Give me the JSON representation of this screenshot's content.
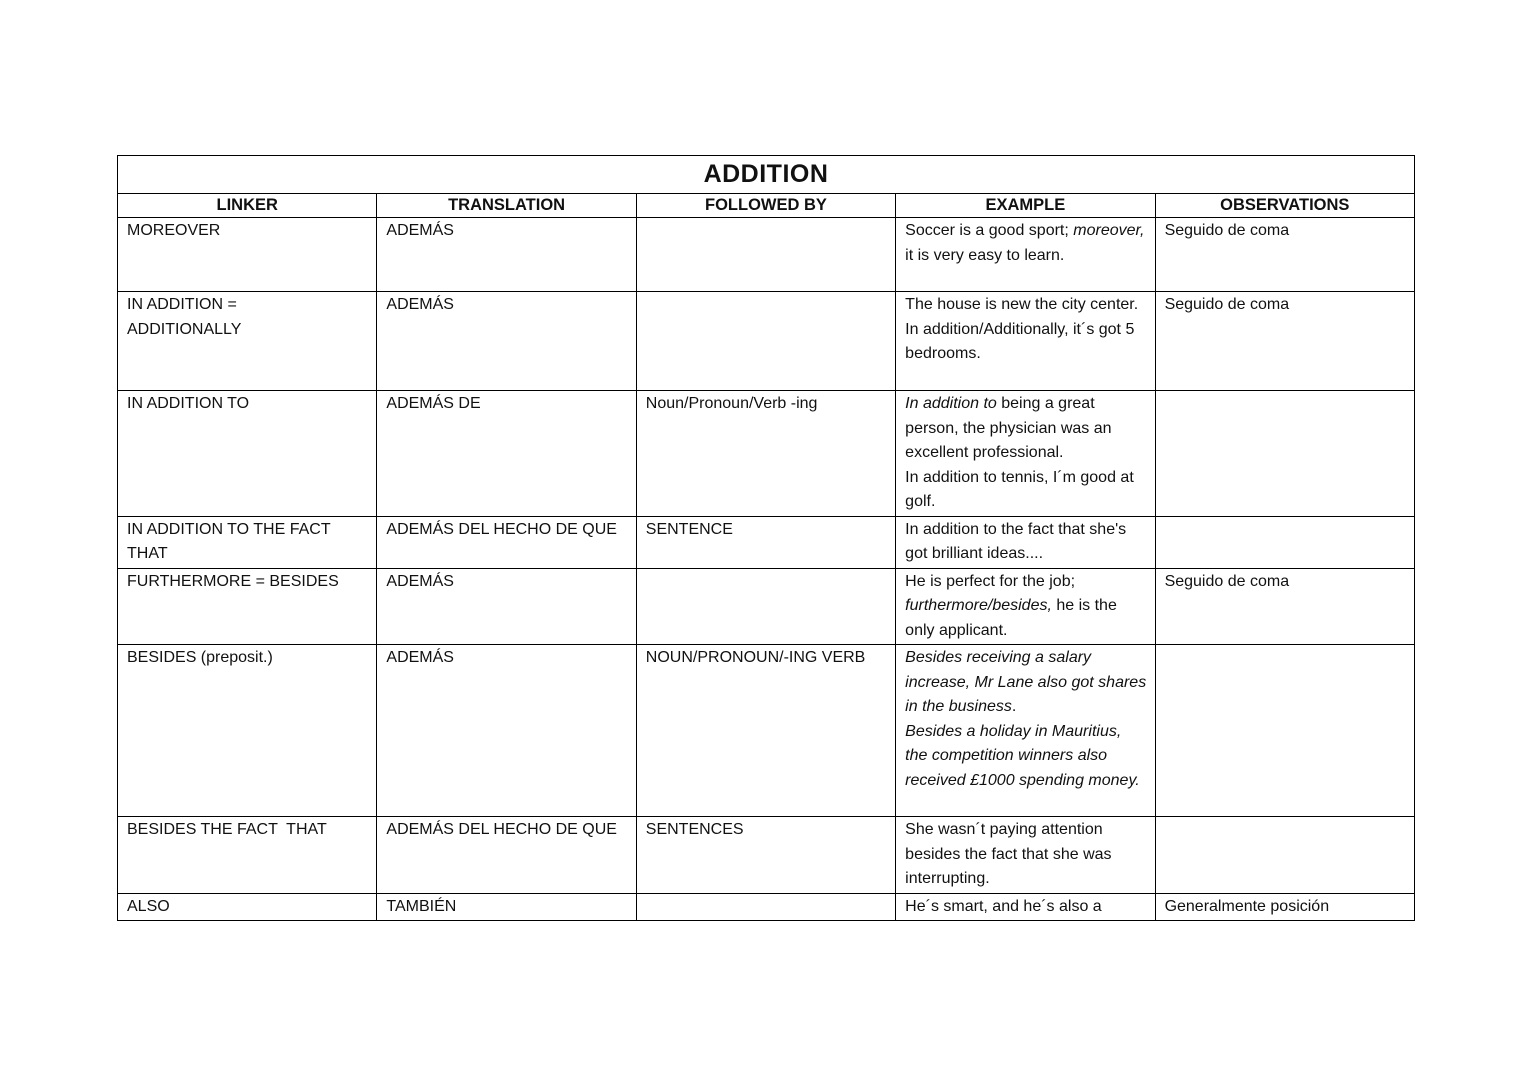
{
  "table": {
    "title": "ADDITION",
    "columns": [
      "LINKER",
      "TRANSLATION",
      "FOLLOWED BY",
      "EXAMPLE",
      "OBSERVATIONS"
    ],
    "rows": [
      {
        "linker": "MOREOVER",
        "translation": "ADEMÁS",
        "followed_by": "",
        "example": [
          {
            "t": "Soccer is a good sport; ",
            "i": false
          },
          {
            "t": "moreover,",
            "i": true
          },
          {
            "t": " it is very easy to learn.",
            "i": false
          }
        ],
        "observations": "Seguido de coma"
      },
      {
        "linker": "IN ADDITION =\nADDITIONALLY",
        "translation": "ADEMÁS",
        "followed_by": "",
        "example": [
          {
            "t": "The house is new the city center. In addition/Additionally, it´s got 5 bedrooms.",
            "i": false
          }
        ],
        "observations": "Seguido de coma"
      },
      {
        "linker": "IN ADDITION TO",
        "translation": "ADEMÁS DE",
        "followed_by": "Noun/Pronoun/Verb -ing",
        "example": [
          {
            "t": "In addition to",
            "i": true
          },
          {
            "t": " being a great person, the physician was an excellent professional.\nIn addition to tennis, I´m good at golf.",
            "i": false
          }
        ],
        "observations": ""
      },
      {
        "linker": "IN ADDITION TO THE FACT\nTHAT",
        "translation": "ADEMÁS DEL HECHO DE QUE",
        "followed_by": "SENTENCE",
        "example": [
          {
            "t": "In addition to the fact that she's  got brilliant ideas....",
            "i": false
          }
        ],
        "observations": ""
      },
      {
        "linker": "FURTHERMORE = BESIDES",
        "translation": "ADEMÁS",
        "followed_by": "",
        "example": [
          {
            "t": "He is perfect for the job; ",
            "i": false
          },
          {
            "t": "furthermore/besides,",
            "i": true
          },
          {
            "t": " he is the only applicant.",
            "i": false
          }
        ],
        "observations": "Seguido de coma"
      },
      {
        "linker": "BESIDES (preposit.)",
        "translation": "ADEMÁS",
        "followed_by": "NOUN/PRONOUN/-ING VERB",
        "example": [
          {
            "t": "Besides receiving a salary increase, Mr Lane also got shares in the business",
            "i": true
          },
          {
            "t": ".\n",
            "i": false
          },
          {
            "t": "Besides a holiday in Mauritius, the competition winners also received £1000 spending money.",
            "i": true
          }
        ],
        "observations": ""
      },
      {
        "linker": "BESIDES THE FACT  THAT",
        "translation": "ADEMÁS DEL HECHO DE QUE",
        "followed_by": "SENTENCES",
        "example": [
          {
            "t": "She wasn´t paying attention besides the fact that she was interrupting.",
            "i": false
          }
        ],
        "observations": ""
      },
      {
        "linker": "ALSO",
        "translation": "TAMBIÉN",
        "followed_by": "",
        "example": [
          {
            "t": "He´s smart, and he´s also a",
            "i": false
          }
        ],
        "observations": "Generalmente posición"
      }
    ]
  }
}
